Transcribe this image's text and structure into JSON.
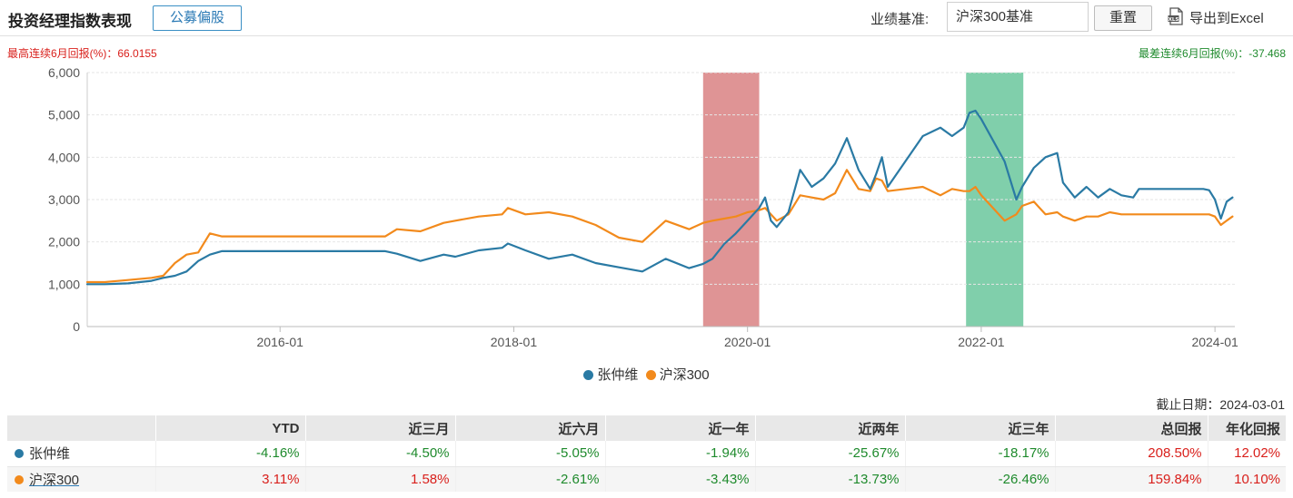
{
  "header": {
    "title": "投资经理指数表现",
    "tag_button": "公募偏股",
    "benchmark_label": "业绩基准:",
    "benchmark_value": "沪深300基准",
    "reset_button": "重置",
    "export_label": "导出到Excel",
    "export_icon": "xls-file-icon"
  },
  "stats": {
    "max_6m": "最高连续6月回报(%)：66.0155",
    "min_6m": "最差连续6月回报(%)：-37.468"
  },
  "colors": {
    "manager": "#2a7aa4",
    "benchmark": "#f28a1c",
    "max_band": "#d67677",
    "min_band": "#5cc294",
    "positive": "#d9201c",
    "negative": "#1e8a2c"
  },
  "chart_data": {
    "type": "line",
    "title": "",
    "xlabel": "",
    "ylabel": "",
    "x_range": [
      2014.35,
      2024.17
    ],
    "ylim": [
      0,
      6000
    ],
    "y_ticks": [
      0,
      1000,
      2000,
      3000,
      4000,
      5000,
      6000
    ],
    "y_tick_labels": [
      "0",
      "1,000",
      "2,000",
      "3,000",
      "4,000",
      "5,000",
      "6,000"
    ],
    "x_ticks": [
      2016.0,
      2018.0,
      2020.0,
      2022.0,
      2024.0
    ],
    "x_tick_labels": [
      "2016-01",
      "2018-01",
      "2020-01",
      "2022-01",
      "2024-01"
    ],
    "grid": true,
    "legend_position": "bottom",
    "highlight_bands": [
      {
        "name": "best-6m",
        "x_start": 2019.62,
        "x_end": 2020.1
      },
      {
        "name": "worst-6m",
        "x_start": 2021.87,
        "x_end": 2022.36
      }
    ],
    "series": [
      {
        "name": "张仲维",
        "x": [
          2014.35,
          2014.5,
          2014.7,
          2014.9,
          2015.0,
          2015.1,
          2015.2,
          2015.3,
          2015.4,
          2015.5,
          2016.0,
          2016.5,
          2016.9,
          2017.0,
          2017.2,
          2017.4,
          2017.5,
          2017.7,
          2017.9,
          2017.95,
          2018.1,
          2018.3,
          2018.5,
          2018.7,
          2018.9,
          2019.1,
          2019.3,
          2019.5,
          2019.62,
          2019.7,
          2019.8,
          2019.9,
          2020.0,
          2020.1,
          2020.15,
          2020.2,
          2020.25,
          2020.35,
          2020.45,
          2020.55,
          2020.65,
          2020.75,
          2020.85,
          2020.95,
          2021.05,
          2021.1,
          2021.15,
          2021.2,
          2021.35,
          2021.5,
          2021.65,
          2021.75,
          2021.85,
          2021.9,
          2021.95,
          2022.0,
          2022.1,
          2022.2,
          2022.3,
          2022.35,
          2022.45,
          2022.55,
          2022.65,
          2022.7,
          2022.8,
          2022.9,
          2023.0,
          2023.1,
          2023.2,
          2023.3,
          2023.35,
          2023.4,
          2023.5,
          2023.7,
          2023.9,
          2023.95,
          2024.0,
          2024.05,
          2024.1,
          2024.15
        ],
        "values": [
          1000,
          1000,
          1020,
          1080,
          1150,
          1200,
          1300,
          1550,
          1700,
          1780,
          1780,
          1780,
          1780,
          1720,
          1550,
          1700,
          1650,
          1800,
          1860,
          1960,
          1800,
          1600,
          1700,
          1500,
          1400,
          1300,
          1600,
          1380,
          1480,
          1600,
          1950,
          2200,
          2500,
          2800,
          3050,
          2500,
          2350,
          2700,
          3700,
          3300,
          3500,
          3850,
          4450,
          3700,
          3250,
          3600,
          4000,
          3300,
          3900,
          4500,
          4700,
          4500,
          4700,
          5050,
          5100,
          4900,
          4400,
          3900,
          3000,
          3300,
          3750,
          4000,
          4100,
          3400,
          3050,
          3300,
          3050,
          3250,
          3100,
          3050,
          3250,
          3250,
          3250,
          3250,
          3250,
          3220,
          3000,
          2550,
          2950,
          3050
        ]
      },
      {
        "name": "沪深300",
        "x": [
          2014.35,
          2014.5,
          2014.7,
          2014.9,
          2015.0,
          2015.1,
          2015.2,
          2015.3,
          2015.4,
          2015.5,
          2016.0,
          2016.5,
          2016.9,
          2017.0,
          2017.2,
          2017.4,
          2017.5,
          2017.7,
          2017.9,
          2017.95,
          2018.1,
          2018.3,
          2018.5,
          2018.7,
          2018.9,
          2019.1,
          2019.3,
          2019.5,
          2019.62,
          2019.7,
          2019.8,
          2019.9,
          2020.0,
          2020.1,
          2020.15,
          2020.2,
          2020.25,
          2020.35,
          2020.45,
          2020.55,
          2020.65,
          2020.75,
          2020.85,
          2020.95,
          2021.05,
          2021.1,
          2021.15,
          2021.2,
          2021.35,
          2021.5,
          2021.65,
          2021.75,
          2021.85,
          2021.9,
          2021.95,
          2022.0,
          2022.1,
          2022.2,
          2022.3,
          2022.35,
          2022.45,
          2022.55,
          2022.65,
          2022.7,
          2022.8,
          2022.9,
          2023.0,
          2023.1,
          2023.2,
          2023.3,
          2023.35,
          2023.4,
          2023.5,
          2023.7,
          2023.9,
          2023.95,
          2024.0,
          2024.05,
          2024.1,
          2024.15
        ],
        "values": [
          1050,
          1050,
          1100,
          1150,
          1200,
          1500,
          1700,
          1750,
          2200,
          2130,
          2130,
          2130,
          2130,
          2300,
          2250,
          2450,
          2500,
          2600,
          2650,
          2800,
          2650,
          2700,
          2600,
          2400,
          2100,
          2000,
          2500,
          2300,
          2450,
          2500,
          2550,
          2600,
          2700,
          2750,
          2800,
          2650,
          2500,
          2650,
          3100,
          3050,
          3000,
          3150,
          3700,
          3250,
          3200,
          3500,
          3450,
          3200,
          3250,
          3300,
          3100,
          3250,
          3200,
          3200,
          3300,
          3100,
          2800,
          2500,
          2650,
          2850,
          2950,
          2650,
          2700,
          2600,
          2500,
          2600,
          2600,
          2700,
          2650,
          2650,
          2650,
          2650,
          2650,
          2650,
          2650,
          2650,
          2600,
          2400,
          2500,
          2600
        ]
      }
    ]
  },
  "legend": {
    "items": [
      {
        "label": "张仲维"
      },
      {
        "label": "沪深300"
      }
    ]
  },
  "deadline": "截止日期：2024-03-01",
  "table": {
    "headers": [
      "",
      "YTD",
      "近三月",
      "近六月",
      "近一年",
      "近两年",
      "近三年",
      "总回报",
      "年化回报"
    ],
    "rows": [
      {
        "name": "张仲维",
        "values": [
          "-4.16%",
          "-4.50%",
          "-5.05%",
          "-1.94%",
          "-25.67%",
          "-18.17%",
          "208.50%",
          "12.02%"
        ]
      },
      {
        "name": "沪深300",
        "values": [
          "3.11%",
          "1.58%",
          "-2.61%",
          "-3.43%",
          "-13.73%",
          "-26.46%",
          "159.84%",
          "10.10%"
        ]
      }
    ]
  }
}
